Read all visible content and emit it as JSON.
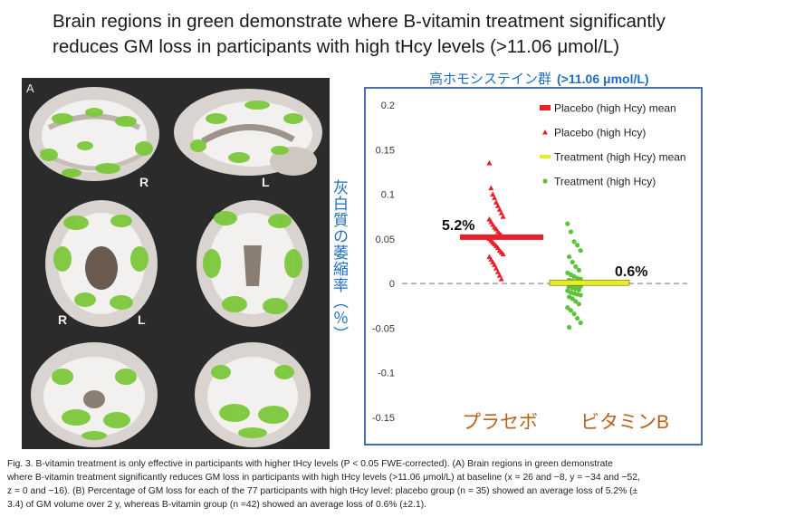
{
  "figure": {
    "title_line1": "Brain regions in green demonstrate where B-vitamin treatment significantly",
    "title_line2": "reduces GM loss in participants with high tHcy levels (>11.06 μmol/L)",
    "group_header_jp": "高ホモシステイン群",
    "group_header_unit": "(>11.06 μmol/L)",
    "ylabel_jp": "灰白質の萎縮率（％）",
    "panel_label": "A",
    "orient": {
      "right": "R",
      "left": "L"
    },
    "colors": {
      "placebo": "#e8202a",
      "treatment": "#5cc43c",
      "treatment_mean": "#e6ee28",
      "jp_blue": "#1f6fc0",
      "jp_orange": "#b5651d"
    }
  },
  "chart_data": {
    "type": "scatter",
    "yticks": [
      "0.2",
      "0.15",
      "0.1",
      "0.05",
      "0",
      "-0.05",
      "-0.1",
      "-0.15"
    ],
    "ylim": [
      -0.15,
      0.2
    ],
    "categories": [
      "プラセボ",
      "ビタミンB"
    ],
    "legend": [
      "Placebo (high Hcy) mean",
      "Placebo (high Hcy)",
      "Treatment (high Hcy) mean",
      "Treatment (high Hcy)"
    ],
    "legend_placement": "top-right",
    "series": [
      {
        "name": "Placebo (high Hcy)",
        "marker": "triangle",
        "values": [
          0.135,
          0.107,
          0.1,
          0.096,
          0.091,
          0.087,
          0.083,
          0.079,
          0.075,
          0.072,
          0.069,
          0.066,
          0.063,
          0.061,
          0.058,
          0.056,
          0.054,
          0.052,
          0.05,
          0.048,
          0.046,
          0.044,
          0.042,
          0.04,
          0.037,
          0.035,
          0.033,
          0.03,
          0.027,
          0.024,
          0.021,
          0.017,
          0.013,
          0.009,
          0.005
        ]
      },
      {
        "name": "Treatment (high Hcy)",
        "marker": "dot",
        "values": [
          0.067,
          0.058,
          0.047,
          0.043,
          0.037,
          0.03,
          0.024,
          0.019,
          0.015,
          0.012,
          0.01,
          0.008,
          0.006,
          0.005,
          0.004,
          0.003,
          0.002,
          0.001,
          0.0,
          0.0,
          -0.001,
          -0.002,
          -0.003,
          -0.004,
          -0.005,
          -0.006,
          -0.007,
          -0.008,
          -0.01,
          -0.011,
          -0.012,
          -0.013,
          -0.015,
          -0.017,
          -0.02,
          -0.023,
          -0.027,
          -0.03,
          -0.034,
          -0.039,
          -0.044,
          -0.049
        ]
      }
    ],
    "means": [
      {
        "name": "Placebo (high Hcy) mean",
        "value": 0.052,
        "label": "5.2%"
      },
      {
        "name": "Treatment (high Hcy) mean",
        "value": 0.006,
        "label": "0.6%"
      }
    ],
    "zero_line": "dashed"
  },
  "caption": {
    "line1": "Fig. 3. B-vitamin treatment  is only effective  in participants with higher tHcy levels (P < 0.05 FWE-corrected). (A) Brain regions in green demonstrate",
    "line2": "where B-vitamin treatment  significantly reduces GM loss in participants with high tHcy levels (>11.06 μmol/L) at baseline (x = 26 and −8,  y = −34 and −52,",
    "line3": "z = 0 and −16). (B) Percentage of GM  loss for each of the 77 participants with high tHcy level: placebo group (n = 35) showed  an average loss of 5.2% (±",
    "line4": "3.4) of GM volume over 2 y, whereas B-vitamin group (n =42)  showed an average loss of 0.6% (±2.1)."
  }
}
